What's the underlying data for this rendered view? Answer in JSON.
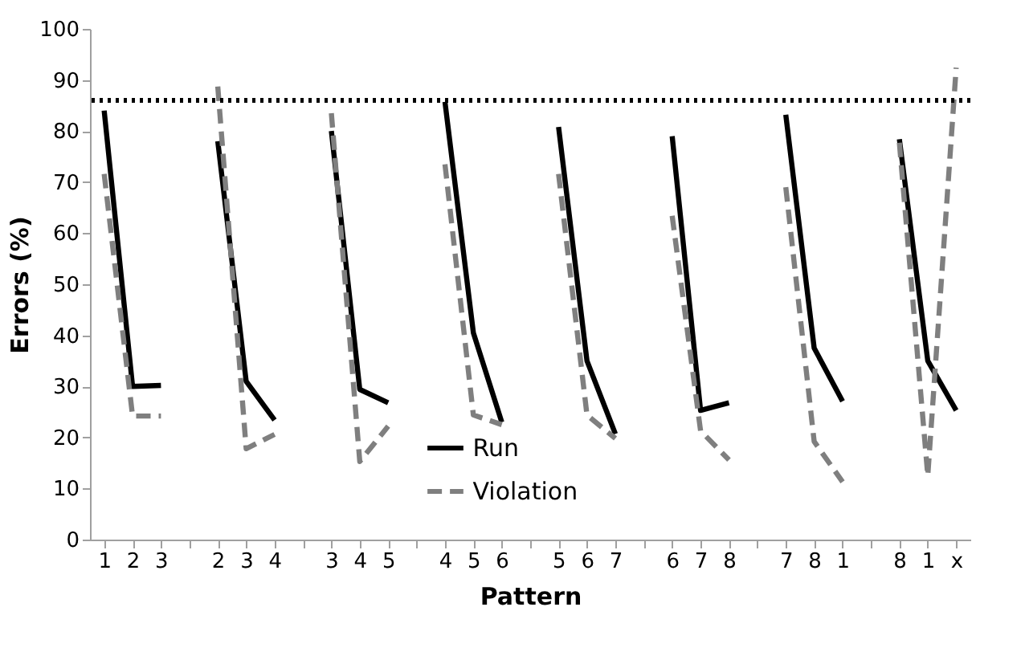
{
  "chart_data": {
    "type": "line",
    "xlabel": "Pattern",
    "ylabel": "Errors (%)",
    "categories": [
      "1",
      "2",
      "3",
      null,
      "2",
      "3",
      "4",
      null,
      "3",
      "4",
      "5",
      null,
      "4",
      "5",
      "6",
      null,
      "5",
      "6",
      "7",
      null,
      "6",
      "7",
      "8",
      null,
      "7",
      "8",
      "1",
      null,
      "8",
      "1",
      "x"
    ],
    "series": [
      {
        "name": "Run",
        "color": "#000000",
        "line_style": "solid",
        "values": [
          84,
          30,
          30.2,
          null,
          78,
          31,
          23.4,
          null,
          80,
          29.4,
          26.8,
          null,
          85.7,
          40.5,
          23,
          null,
          80.8,
          35,
          20.7,
          null,
          79,
          25.3,
          26.8,
          null,
          83.2,
          37.5,
          27.1,
          null,
          78.4,
          35,
          25.3
        ]
      },
      {
        "name": "Violation",
        "color": "#7f7f7f",
        "line_style": "dashed",
        "values": [
          71.6,
          24.2,
          24.2,
          null,
          88.7,
          17.8,
          20.6,
          null,
          83.5,
          15.3,
          22.2,
          null,
          73.5,
          24.4,
          22.5,
          null,
          71.6,
          24.4,
          19.8,
          null,
          63.4,
          21.3,
          15.6,
          null,
          69,
          19.2,
          11.3,
          null,
          77.7,
          12.5,
          92.4
        ]
      }
    ],
    "ylim": [
      0,
      100
    ],
    "yticks": [
      0,
      10,
      20,
      30,
      40,
      50,
      60,
      70,
      80,
      90,
      100
    ],
    "ref_lines": [
      {
        "axis": "y",
        "value": 86,
        "color": "#000000",
        "line_style": "dotted"
      }
    ],
    "grid": false,
    "legend": "bottom"
  }
}
